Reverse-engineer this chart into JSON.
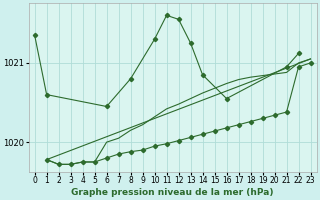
{
  "title": "Graphe pression niveau de la mer (hPa)",
  "background_color": "#cff0ee",
  "plot_bg_color": "#daf5f0",
  "grid_color": "#b0ddd8",
  "line_color": "#2d6b2d",
  "xlim": [
    -0.5,
    23.5
  ],
  "ylim": [
    1019.62,
    1021.75
  ],
  "yticks": [
    1020,
    1021
  ],
  "xticks": [
    0,
    1,
    2,
    3,
    4,
    5,
    6,
    7,
    8,
    9,
    10,
    11,
    12,
    13,
    14,
    15,
    16,
    17,
    18,
    19,
    20,
    21,
    22,
    23
  ],
  "s1x": [
    0,
    1,
    6,
    8,
    10,
    11,
    12,
    13,
    14,
    16,
    21,
    22
  ],
  "s1y": [
    1021.35,
    1020.6,
    1020.45,
    1020.8,
    1021.3,
    1021.6,
    1021.55,
    1021.25,
    1020.85,
    1020.55,
    1020.95,
    1021.12
  ],
  "s2x": [
    1,
    2,
    3,
    4,
    5,
    6,
    7,
    8,
    9,
    10,
    11,
    12,
    13,
    14,
    15,
    16,
    17,
    18,
    19,
    20,
    21,
    22,
    23
  ],
  "s2y": [
    1019.78,
    1019.72,
    1019.72,
    1019.75,
    1019.75,
    1019.8,
    1019.85,
    1019.88,
    1019.9,
    1019.95,
    1019.98,
    1020.02,
    1020.06,
    1020.1,
    1020.14,
    1020.18,
    1020.22,
    1020.26,
    1020.3,
    1020.34,
    1020.38,
    1020.95,
    1021.0
  ],
  "s3x": [
    1,
    2,
    3,
    4,
    5,
    6,
    7,
    8,
    9,
    10,
    11,
    12,
    13,
    14,
    15,
    16,
    17,
    18,
    19,
    20,
    21,
    22,
    23
  ],
  "s3y": [
    1019.78,
    1019.72,
    1019.72,
    1019.75,
    1019.75,
    1020.0,
    1020.05,
    1020.15,
    1020.22,
    1020.32,
    1020.42,
    1020.48,
    1020.55,
    1020.62,
    1020.68,
    1020.74,
    1020.79,
    1020.82,
    1020.84,
    1020.86,
    1020.88,
    1021.0,
    1021.05
  ],
  "s4x": [
    1,
    23
  ],
  "s4y": [
    1019.78,
    1021.05
  ],
  "xlabel_fontsize": 6.5,
  "tick_fontsize": 5.5
}
